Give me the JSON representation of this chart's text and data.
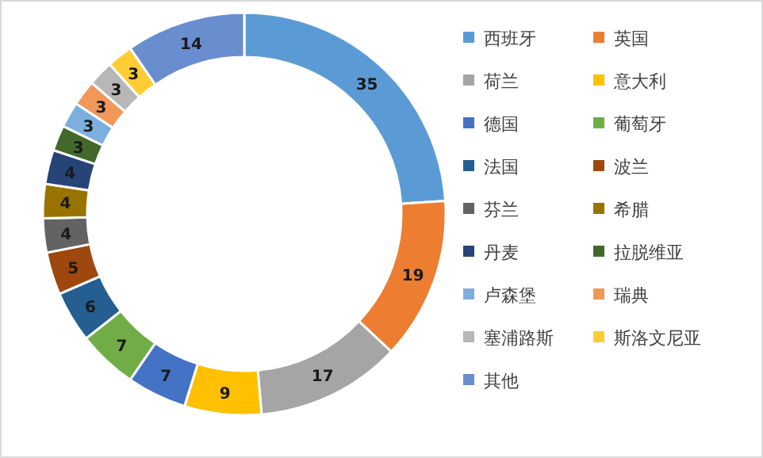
{
  "chart_data": {
    "type": "donut",
    "categories": [
      "西班牙",
      "英国",
      "荷兰",
      "意大利",
      "德国",
      "葡萄牙",
      "法国",
      "波兰",
      "芬兰",
      "希腊",
      "丹麦",
      "拉脱维亚",
      "卢森堡",
      "瑞典",
      "塞浦路斯",
      "斯洛文尼亚",
      "其他"
    ],
    "values": [
      35,
      19,
      17,
      9,
      7,
      7,
      6,
      5,
      4,
      4,
      4,
      3,
      3,
      3,
      3,
      3,
      14
    ],
    "colors": [
      "#5b9bd5",
      "#ed7d31",
      "#a5a5a5",
      "#ffc000",
      "#4472c4",
      "#70ad47",
      "#255e91",
      "#9e480e",
      "#636363",
      "#997300",
      "#264478",
      "#43682b",
      "#7cafdd",
      "#f1975a",
      "#b7b7b7",
      "#ffcd33",
      "#698ed0"
    ],
    "data_labels": true,
    "legend": "right"
  }
}
